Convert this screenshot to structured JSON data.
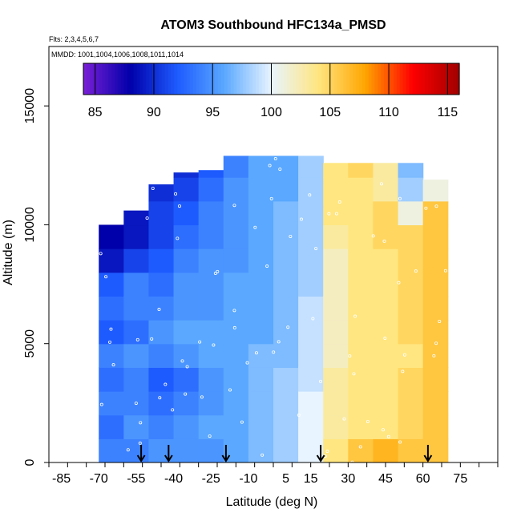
{
  "chart_data": {
    "type": "heatmap",
    "title": "ATOM3 Southbound HFC134a_PMSD",
    "annotations": {
      "flights": "Flts: 2,3,4,5,6,7",
      "dates": "MMDD: 1001,1004,1006,1008,1011,1014"
    },
    "xlabel": "Latitude (deg N)",
    "ylabel": "Altitude (m)",
    "xlim": [
      -90,
      90
    ],
    "ylim": [
      0,
      17500
    ],
    "x_tick_labels": [
      -85,
      -70,
      -55,
      -40,
      -25,
      -10,
      5,
      15,
      30,
      45,
      60,
      75
    ],
    "y_tick_labels": [
      0,
      5000,
      10000,
      15000
    ],
    "colorbar": {
      "min": 84,
      "max": 116,
      "tick_labels": [
        85,
        90,
        95,
        100,
        105,
        110,
        115
      ],
      "colors": [
        "#7a1fd6",
        "#0000aa",
        "#1e5bff",
        "#5aa8ff",
        "#e8f4ff",
        "#ffe680",
        "#ffa500",
        "#ff0000",
        "#a00000"
      ]
    },
    "profile_markers_lat": [
      -53,
      -42,
      -19,
      19,
      62
    ],
    "columns": [
      {
        "lat_from": -70,
        "lat_to": -60,
        "alt_top": 10000,
        "values": [
          94,
          93,
          94,
          93,
          94,
          92,
          93,
          92,
          89,
          88
        ]
      },
      {
        "lat_from": -60,
        "lat_to": -50,
        "alt_top": 10600,
        "values": [
          94,
          95,
          94,
          94,
          95,
          93,
          94,
          94,
          91,
          89,
          89
        ]
      },
      {
        "lat_from": -50,
        "lat_to": -40,
        "alt_top": 11700,
        "values": [
          95,
          94,
          93,
          92,
          94,
          95,
          94,
          93,
          92,
          91,
          91,
          90
        ]
      },
      {
        "lat_from": -40,
        "lat_to": -30,
        "alt_top": 12200,
        "values": [
          95,
          95,
          94,
          93,
          95,
          96,
          95,
          95,
          94,
          93,
          92,
          91,
          90
        ]
      },
      {
        "lat_from": -30,
        "lat_to": -20,
        "alt_top": 12300,
        "values": [
          95,
          96,
          95,
          95,
          96,
          96,
          95,
          95,
          95,
          94,
          94,
          93,
          92
        ]
      },
      {
        "lat_from": -20,
        "lat_to": -10,
        "alt_top": 12900,
        "values": [
          96,
          96,
          96,
          96,
          96,
          96,
          96,
          96,
          95,
          95,
          95,
          95,
          94
        ]
      },
      {
        "lat_from": -10,
        "lat_to": 0,
        "alt_top": 12900,
        "values": [
          97,
          97,
          97,
          97,
          97,
          96,
          96,
          96,
          96,
          96,
          96,
          96,
          96
        ]
      },
      {
        "lat_from": 0,
        "lat_to": 10,
        "alt_top": 12900,
        "values": [
          98,
          98,
          98,
          98,
          97,
          97,
          97,
          97,
          97,
          97,
          97,
          96,
          96
        ]
      },
      {
        "lat_from": 10,
        "lat_to": 20,
        "alt_top": 12900,
        "values": [
          100,
          100,
          100,
          99,
          99,
          99,
          99,
          98,
          98,
          98,
          98,
          98,
          98
        ]
      },
      {
        "lat_from": 20,
        "lat_to": 30,
        "alt_top": 12600,
        "values": [
          104,
          103,
          103,
          103,
          102,
          102,
          102,
          102,
          102,
          103,
          104,
          104,
          104
        ]
      },
      {
        "lat_from": 30,
        "lat_to": 40,
        "alt_top": 12600,
        "values": [
          106,
          104,
          104,
          104,
          104,
          104,
          104,
          104,
          104,
          104,
          104,
          104,
          105
        ]
      },
      {
        "lat_from": 40,
        "lat_to": 50,
        "alt_top": 12600,
        "values": [
          107,
          104,
          104,
          104,
          104,
          104,
          104,
          104,
          104,
          105,
          105,
          103,
          103
        ]
      },
      {
        "lat_from": 50,
        "lat_to": 60,
        "alt_top": 12600,
        "values": [
          106,
          105,
          105,
          105,
          104,
          105,
          105,
          105,
          105,
          105,
          101,
          98,
          97
        ]
      },
      {
        "lat_from": 60,
        "lat_to": 70,
        "alt_top": 11900,
        "values": [
          106,
          106,
          106,
          106,
          106,
          106,
          106,
          106,
          106,
          106,
          106,
          101
        ]
      }
    ]
  }
}
